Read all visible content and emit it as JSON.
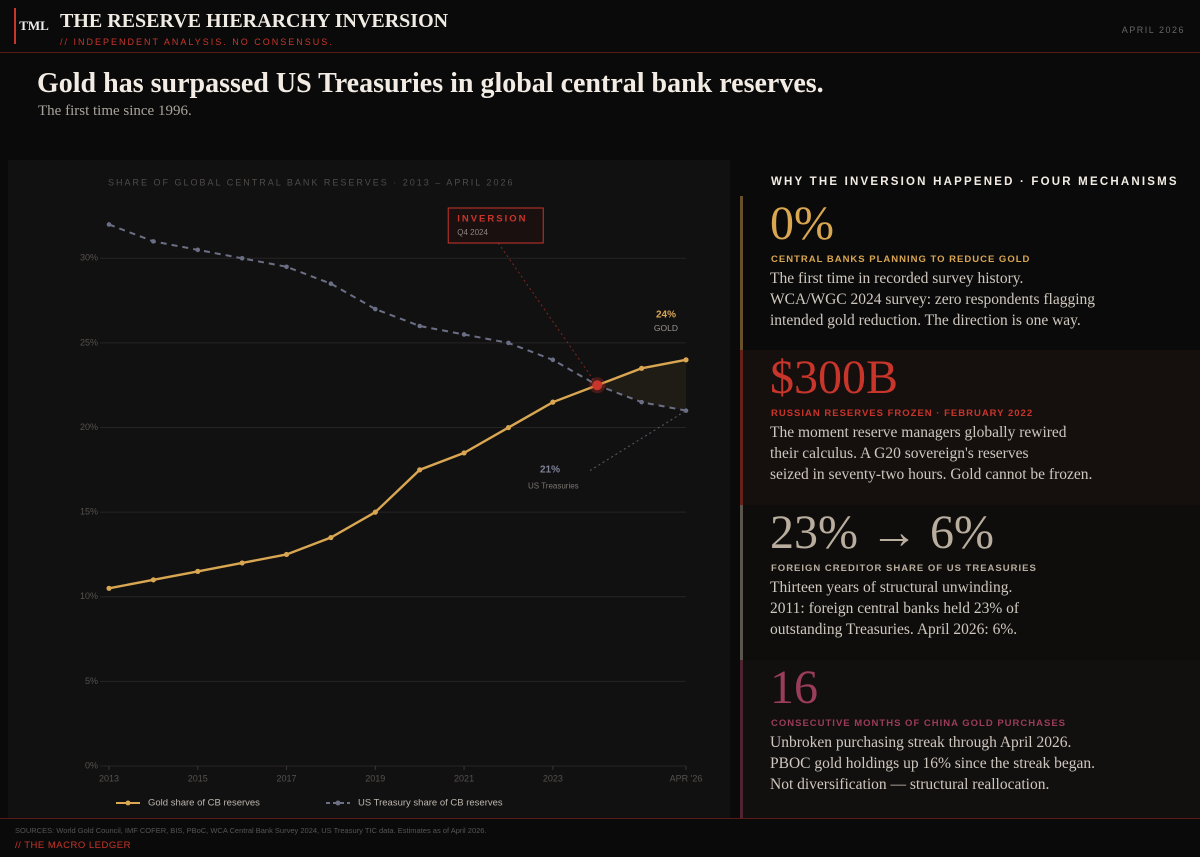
{
  "header": {
    "logo": "TML",
    "title": "THE RESERVE HIERARCHY INVERSION",
    "tagline": "// INDEPENDENT ANALYSIS. NO CONSENSUS.",
    "date": "APRIL 2026"
  },
  "headline": {
    "title": "Gold has surpassed US Treasuries in global central bank reserves.",
    "subtitle": "The first time since 1996."
  },
  "chart_data": {
    "type": "line",
    "title": "SHARE OF GLOBAL CENTRAL BANK RESERVES · 2013 – APRIL 2026",
    "x": [
      2013,
      2014,
      2015,
      2016,
      2017,
      2018,
      2019,
      2020,
      2021,
      2022,
      2023,
      2024,
      2025,
      2026
    ],
    "xlim": [
      2013,
      2026
    ],
    "xticks": [
      2013,
      2015,
      2017,
      2019,
      2021,
      2023,
      {
        "value": 2026,
        "label": "APR '26"
      }
    ],
    "ylim": [
      0,
      32.5
    ],
    "yticks": [
      {
        "value": 0,
        "label": "0%"
      },
      {
        "value": 5,
        "label": "5%"
      },
      {
        "value": 10,
        "label": "10%"
      },
      {
        "value": 15,
        "label": "15%"
      },
      {
        "value": 20,
        "label": "20%"
      },
      {
        "value": 25,
        "label": "25%"
      },
      {
        "value": 30,
        "label": "30%"
      }
    ],
    "grid": true,
    "series": [
      {
        "name": "Gold share of CB reserves",
        "color": "#d9a652",
        "dashed": false,
        "values": [
          10.5,
          11,
          11.5,
          12,
          12.5,
          13.5,
          15,
          17.5,
          18.5,
          20,
          21.5,
          22.5,
          23.5,
          24
        ],
        "end_label": "24%",
        "end_note": "GOLD"
      },
      {
        "name": "US Treasury share of CB reserves",
        "color": "#6b6f85",
        "dashed": true,
        "values": [
          32,
          31,
          30.5,
          30,
          29.5,
          28.5,
          27,
          26,
          25.5,
          25,
          24,
          22.5,
          21.5,
          21
        ],
        "end_label": "21%",
        "end_note": "US Treasuries"
      }
    ],
    "inversion": {
      "label": "INVERSION",
      "sublabel": "Q4 2024",
      "color": "#c8352b"
    }
  },
  "mechanisms": {
    "heading": "WHY THE INVERSION HAPPENED · FOUR MECHANISMS",
    "items": [
      {
        "stat": "0%",
        "color": "#d9a652",
        "label": "CENTRAL BANKS PLANNING TO REDUCE GOLD",
        "lines": [
          "The first time in recorded survey history.",
          "WCA/WGC 2024 survey: zero respondents flagging",
          "intended gold reduction. The direction is one way."
        ]
      },
      {
        "stat": "$300B",
        "color": "#c8352b",
        "label": "RUSSIAN RESERVES FROZEN · FEBRUARY 2022",
        "lines": [
          "The moment reserve managers globally rewired",
          "their calculus. A G20 sovereign's reserves",
          "seized in seventy-two hours. Gold cannot be frozen."
        ]
      },
      {
        "stat": "23% → 6%",
        "color": "#b9ad9e",
        "label": "FOREIGN CREDITOR SHARE OF US TREASURIES",
        "lines": [
          "Thirteen years of structural unwinding.",
          "2011: foreign central banks held 23% of",
          "outstanding Treasuries. April 2026: 6%."
        ]
      },
      {
        "stat": "16",
        "color": "#9a3d58",
        "label": "CONSECUTIVE MONTHS OF CHINA GOLD PURCHASES",
        "lines": [
          "Unbroken purchasing streak through April 2026.",
          "PBOC gold holdings up 16% since the streak began.",
          "Not diversification — structural reallocation."
        ]
      }
    ]
  },
  "footer": {
    "sources": "SOURCES: World Gold Council, IMF COFER, BIS, PBoC, WCA Central Bank Survey 2024, US Treasury TIC data. Estimates as of April 2026.",
    "brand": "// THE MACRO LEDGER"
  }
}
